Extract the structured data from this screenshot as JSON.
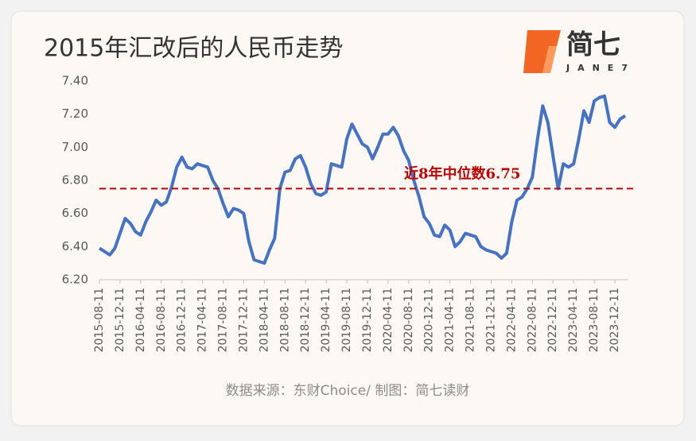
{
  "chart_data": {
    "type": "line",
    "title": "2015年汇改后的人民币走势",
    "logo": {
      "text": "简七",
      "subtext": "JANE7"
    },
    "source": "数据来源：东财Choice/ 制图：简七读财",
    "categories": [
      "2015-08-11",
      null,
      null,
      null,
      "2015-12-11",
      null,
      null,
      null,
      "2016-04-11",
      null,
      null,
      null,
      "2016-08-11",
      null,
      null,
      null,
      "2016-12-11",
      null,
      null,
      null,
      "2017-04-11",
      null,
      null,
      null,
      "2017-08-11",
      null,
      null,
      null,
      "2017-12-11",
      null,
      null,
      null,
      "2018-04-11",
      null,
      null,
      null,
      "2018-08-11",
      null,
      null,
      null,
      "2018-12-11",
      null,
      null,
      null,
      "2019-04-11",
      null,
      null,
      null,
      "2019-08-11",
      null,
      null,
      null,
      "2019-12-11",
      null,
      null,
      null,
      "2020-04-11",
      null,
      null,
      null,
      "2020-08-11",
      null,
      null,
      null,
      "2020-12-11",
      null,
      null,
      null,
      "2021-04-11",
      null,
      null,
      null,
      "2021-08-11",
      null,
      null,
      null,
      "2021-12-11",
      null,
      null,
      null,
      "2022-04-11",
      null,
      null,
      null,
      "2022-08-11",
      null,
      null,
      null,
      "2022-12-11",
      null,
      null,
      null,
      "2023-04-11",
      null,
      null,
      null,
      "2023-08-11",
      null,
      null,
      null,
      "2023-12-11",
      null,
      null
    ],
    "values": [
      6.39,
      6.37,
      6.35,
      6.39,
      6.48,
      6.57,
      6.54,
      6.49,
      6.47,
      6.55,
      6.61,
      6.68,
      6.65,
      6.67,
      6.76,
      6.88,
      6.94,
      6.88,
      6.87,
      6.9,
      6.89,
      6.88,
      6.8,
      6.75,
      6.66,
      6.58,
      6.63,
      6.62,
      6.6,
      6.43,
      6.32,
      6.31,
      6.3,
      6.38,
      6.45,
      6.75,
      6.85,
      6.86,
      6.93,
      6.95,
      6.88,
      6.78,
      6.72,
      6.71,
      6.73,
      6.9,
      6.89,
      6.88,
      7.05,
      7.14,
      7.08,
      7.02,
      7.0,
      6.93,
      7.0,
      7.08,
      7.08,
      7.12,
      7.07,
      6.98,
      6.92,
      6.8,
      6.7,
      6.58,
      6.54,
      6.47,
      6.46,
      6.53,
      6.5,
      6.4,
      6.43,
      6.48,
      6.47,
      6.46,
      6.4,
      6.38,
      6.37,
      6.36,
      6.33,
      6.36,
      6.55,
      6.68,
      6.7,
      6.75,
      6.82,
      7.05,
      7.25,
      7.15,
      6.95,
      6.75,
      6.9,
      6.88,
      6.9,
      7.05,
      7.22,
      7.15,
      7.28,
      7.3,
      7.31,
      7.15,
      7.12,
      7.17,
      7.19
    ],
    "color": "#4472c4",
    "ylim": [
      6.2,
      7.4
    ],
    "yticks": [
      {
        "value": 6.2,
        "label": "6.20"
      },
      {
        "value": 6.4,
        "label": "6.40"
      },
      {
        "value": 6.6,
        "label": "6.60"
      },
      {
        "value": 6.8,
        "label": "6.80"
      },
      {
        "value": 7.0,
        "label": "7.00"
      },
      {
        "value": 7.2,
        "label": "7.20"
      },
      {
        "value": 7.4,
        "label": "7.40"
      }
    ],
    "reference_line": {
      "value": 6.75,
      "color": "#c00000",
      "label": "近8年中位数6.75"
    }
  }
}
